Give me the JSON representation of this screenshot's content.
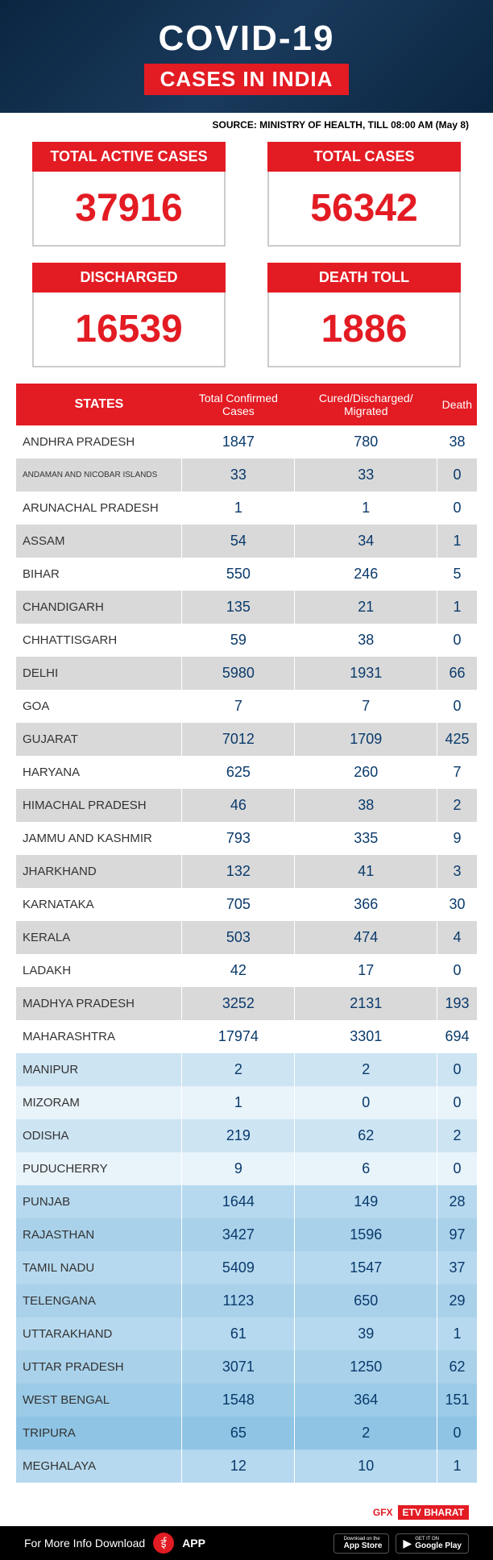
{
  "header": {
    "title": "COVID-19",
    "subtitle": "CASES IN INDIA"
  },
  "source": "SOURCE: MINISTRY OF HEALTH, TILL 08:00 AM (May 8)",
  "cards": [
    {
      "label": "TOTAL ACTIVE CASES",
      "value": "37916"
    },
    {
      "label": "TOTAL CASES",
      "value": "56342"
    },
    {
      "label": "DISCHARGED",
      "value": "16539"
    },
    {
      "label": "DEATH TOLL",
      "value": "1886"
    }
  ],
  "table": {
    "columns": [
      "STATES",
      "Total Confirmed Cases",
      "Cured/Discharged/ Migrated",
      "Death"
    ],
    "rows": [
      {
        "state": "ANDHRA PRADESH",
        "c": "1847",
        "d": "780",
        "e": "38",
        "bg": "#ffffff",
        "fs": "15"
      },
      {
        "state": "ANDAMAN AND NICOBAR ISLANDS",
        "c": "33",
        "d": "33",
        "e": "0",
        "bg": "#d9d9d9",
        "fs": "10"
      },
      {
        "state": "ARUNACHAL PRADESH",
        "c": "1",
        "d": "1",
        "e": "0",
        "bg": "#ffffff",
        "fs": "15"
      },
      {
        "state": "ASSAM",
        "c": "54",
        "d": "34",
        "e": "1",
        "bg": "#d9d9d9",
        "fs": "15"
      },
      {
        "state": "BIHAR",
        "c": "550",
        "d": "246",
        "e": "5",
        "bg": "#ffffff",
        "fs": "15"
      },
      {
        "state": "CHANDIGARH",
        "c": "135",
        "d": "21",
        "e": "1",
        "bg": "#d9d9d9",
        "fs": "15"
      },
      {
        "state": "CHHATTISGARH",
        "c": "59",
        "d": "38",
        "e": "0",
        "bg": "#ffffff",
        "fs": "15"
      },
      {
        "state": "DELHI",
        "c": "5980",
        "d": "1931",
        "e": "66",
        "bg": "#d9d9d9",
        "fs": "15"
      },
      {
        "state": "GOA",
        "c": "7",
        "d": "7",
        "e": "0",
        "bg": "#ffffff",
        "fs": "15"
      },
      {
        "state": "GUJARAT",
        "c": "7012",
        "d": "1709",
        "e": "425",
        "bg": "#d9d9d9",
        "fs": "15"
      },
      {
        "state": "HARYANA",
        "c": "625",
        "d": "260",
        "e": "7",
        "bg": "#ffffff",
        "fs": "15"
      },
      {
        "state": "HIMACHAL PRADESH",
        "c": "46",
        "d": "38",
        "e": "2",
        "bg": "#d9d9d9",
        "fs": "15"
      },
      {
        "state": "JAMMU AND KASHMIR",
        "c": "793",
        "d": "335",
        "e": "9",
        "bg": "#ffffff",
        "fs": "15"
      },
      {
        "state": "JHARKHAND",
        "c": "132",
        "d": "41",
        "e": "3",
        "bg": "#d9d9d9",
        "fs": "15"
      },
      {
        "state": "KARNATAKA",
        "c": "705",
        "d": "366",
        "e": "30",
        "bg": "#ffffff",
        "fs": "15"
      },
      {
        "state": "KERALA",
        "c": "503",
        "d": "474",
        "e": "4",
        "bg": "#d9d9d9",
        "fs": "15"
      },
      {
        "state": "LADAKH",
        "c": "42",
        "d": "17",
        "e": "0",
        "bg": "#ffffff",
        "fs": "15"
      },
      {
        "state": "MADHYA PRADESH",
        "c": "3252",
        "d": "2131",
        "e": "193",
        "bg": "#d9d9d9",
        "fs": "15"
      },
      {
        "state": "MAHARASHTRA",
        "c": "17974",
        "d": "3301",
        "e": "694",
        "bg": "#ffffff",
        "fs": "15"
      },
      {
        "state": "MANIPUR",
        "c": "2",
        "d": "2",
        "e": "0",
        "bg": "#cde4f3",
        "fs": "15"
      },
      {
        "state": "MIZORAM",
        "c": "1",
        "d": "0",
        "e": "0",
        "bg": "#e8f3fa",
        "fs": "15"
      },
      {
        "state": "ODISHA",
        "c": "219",
        "d": "62",
        "e": "2",
        "bg": "#cde4f3",
        "fs": "15"
      },
      {
        "state": "PUDUCHERRY",
        "c": "9",
        "d": "6",
        "e": "0",
        "bg": "#e8f3fa",
        "fs": "15"
      },
      {
        "state": "PUNJAB",
        "c": "1644",
        "d": "149",
        "e": "28",
        "bg": "#b6d9ef",
        "fs": "15"
      },
      {
        "state": "RAJASTHAN",
        "c": "3427",
        "d": "1596",
        "e": "97",
        "bg": "#a9d1ea",
        "fs": "15"
      },
      {
        "state": "TAMIL NADU",
        "c": "5409",
        "d": "1547",
        "e": "37",
        "bg": "#b6d9ef",
        "fs": "15"
      },
      {
        "state": "TELENGANA",
        "c": "1123",
        "d": "650",
        "e": "29",
        "bg": "#a9d1ea",
        "fs": "15"
      },
      {
        "state": "UTTARAKHAND",
        "c": "61",
        "d": "39",
        "e": "1",
        "bg": "#b6d9ef",
        "fs": "15"
      },
      {
        "state": "UTTAR PRADESH",
        "c": "3071",
        "d": "1250",
        "e": "62",
        "bg": "#a9d1ea",
        "fs": "15"
      },
      {
        "state": "WEST BENGAL",
        "c": "1548",
        "d": "364",
        "e": "151",
        "bg": "#9bcbe7",
        "fs": "15"
      },
      {
        "state": "TRIPURA",
        "c": "65",
        "d": "2",
        "e": "0",
        "bg": "#8fc4e4",
        "fs": "15"
      },
      {
        "state": "MEGHALAYA",
        "c": "12",
        "d": "10",
        "e": "1",
        "bg": "#b6d9ef",
        "fs": "15"
      }
    ]
  },
  "footer": {
    "gfx": "GFX",
    "etv": "ETV BHARAT"
  },
  "downloadBar": {
    "text": "For More Info Download",
    "app": "APP",
    "stores": [
      {
        "top": "Download on the",
        "main": "App Store",
        "icon": ""
      },
      {
        "top": "GET IT ON",
        "main": "Google Play",
        "icon": "▶"
      }
    ]
  }
}
